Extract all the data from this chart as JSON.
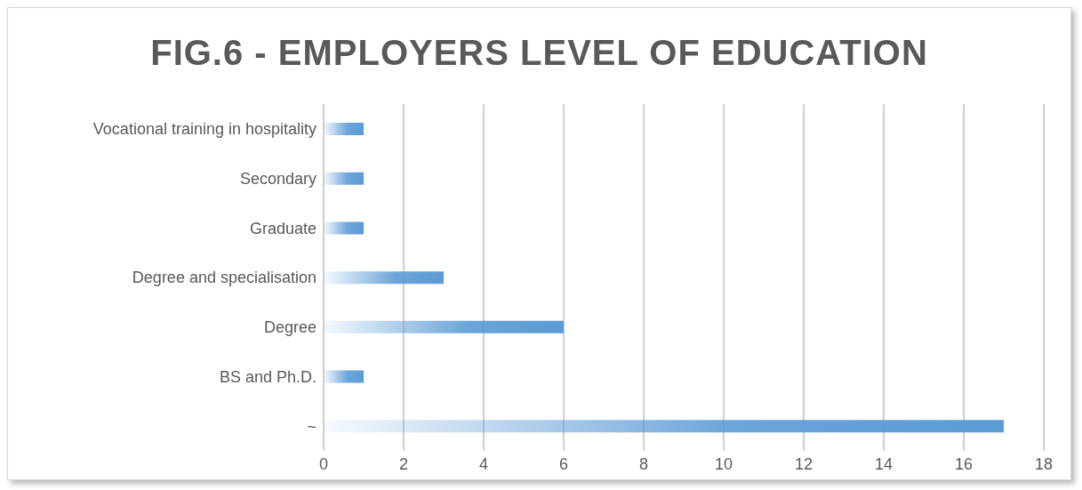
{
  "chart_data": {
    "type": "bar",
    "orientation": "horizontal",
    "title": "FIG.6 - EMPLOYERS LEVEL OF EDUCATION",
    "categories": [
      "Vocational training in hospitality",
      "Secondary",
      "Graduate",
      "Degree and specialisation",
      "Degree",
      "BS and Ph.D.",
      "~"
    ],
    "values": [
      1,
      1,
      1,
      3,
      6,
      1,
      17
    ],
    "color": "#5b9bd5",
    "xlim": [
      0,
      18
    ],
    "xticks": [
      0,
      2,
      4,
      6,
      8,
      10,
      12,
      14,
      16,
      18
    ],
    "grid": "x"
  }
}
